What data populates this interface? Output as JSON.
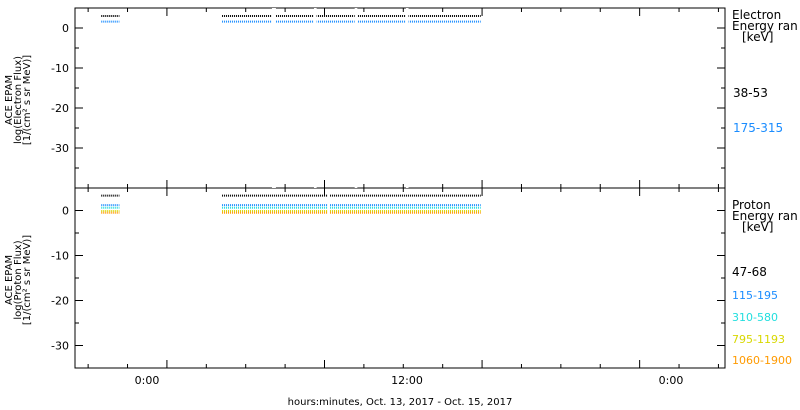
{
  "chart_data": [
    {
      "type": "scatter",
      "panel": "electron",
      "ylabel": [
        "ACE EPAM",
        "log(Electron Flux)",
        "[1/(cm² s sr MeV)]"
      ],
      "ylim": [
        -40,
        5
      ],
      "yticks": [
        "0",
        "-10",
        "-20",
        "-30"
      ],
      "xlim_hours": [
        -7,
        42.5
      ],
      "legend_title": [
        "Electron",
        "Energy ran",
        "[keV]"
      ],
      "gaps_hours": [
        [
          -4.7,
          4.2
        ],
        [
          23.9,
          48
        ]
      ],
      "series": [
        {
          "name": "38-53",
          "color": "#000000",
          "value": 3.0
        },
        {
          "name": "175-315",
          "color": "#1a8cff",
          "value": 1.6
        }
      ]
    },
    {
      "type": "scatter",
      "panel": "proton",
      "ylabel": [
        "ACE EPAM",
        "log(Proton Flux)",
        "[1/(cm² s sr MeV)]"
      ],
      "ylim": [
        -35,
        5
      ],
      "yticks": [
        "0",
        "-10",
        "-20",
        "-30"
      ],
      "xlim_hours": [
        -7,
        42.5
      ],
      "xticks": [
        "0:00",
        "12:00",
        "0:00"
      ],
      "xlabel": "hours:minutes, Oct. 13, 2017 - Oct. 15, 2017",
      "legend_title": [
        "Proton",
        "Energy ran",
        "[keV]"
      ],
      "gaps_hours": [
        [
          -4.7,
          4.2
        ],
        [
          23.9,
          48
        ]
      ],
      "series": [
        {
          "name": "47-68",
          "color": "#000000",
          "value": 3.3
        },
        {
          "name": "115-195",
          "color": "#1a8cff",
          "value": 1.2
        },
        {
          "name": "310-580",
          "color": "#22dede",
          "value": 0.6
        },
        {
          "name": "795-1193",
          "color": "#d8d800",
          "value": -0.1
        },
        {
          "name": "1060-1900",
          "color": "#ff9a00",
          "value": -0.5
        }
      ]
    }
  ]
}
